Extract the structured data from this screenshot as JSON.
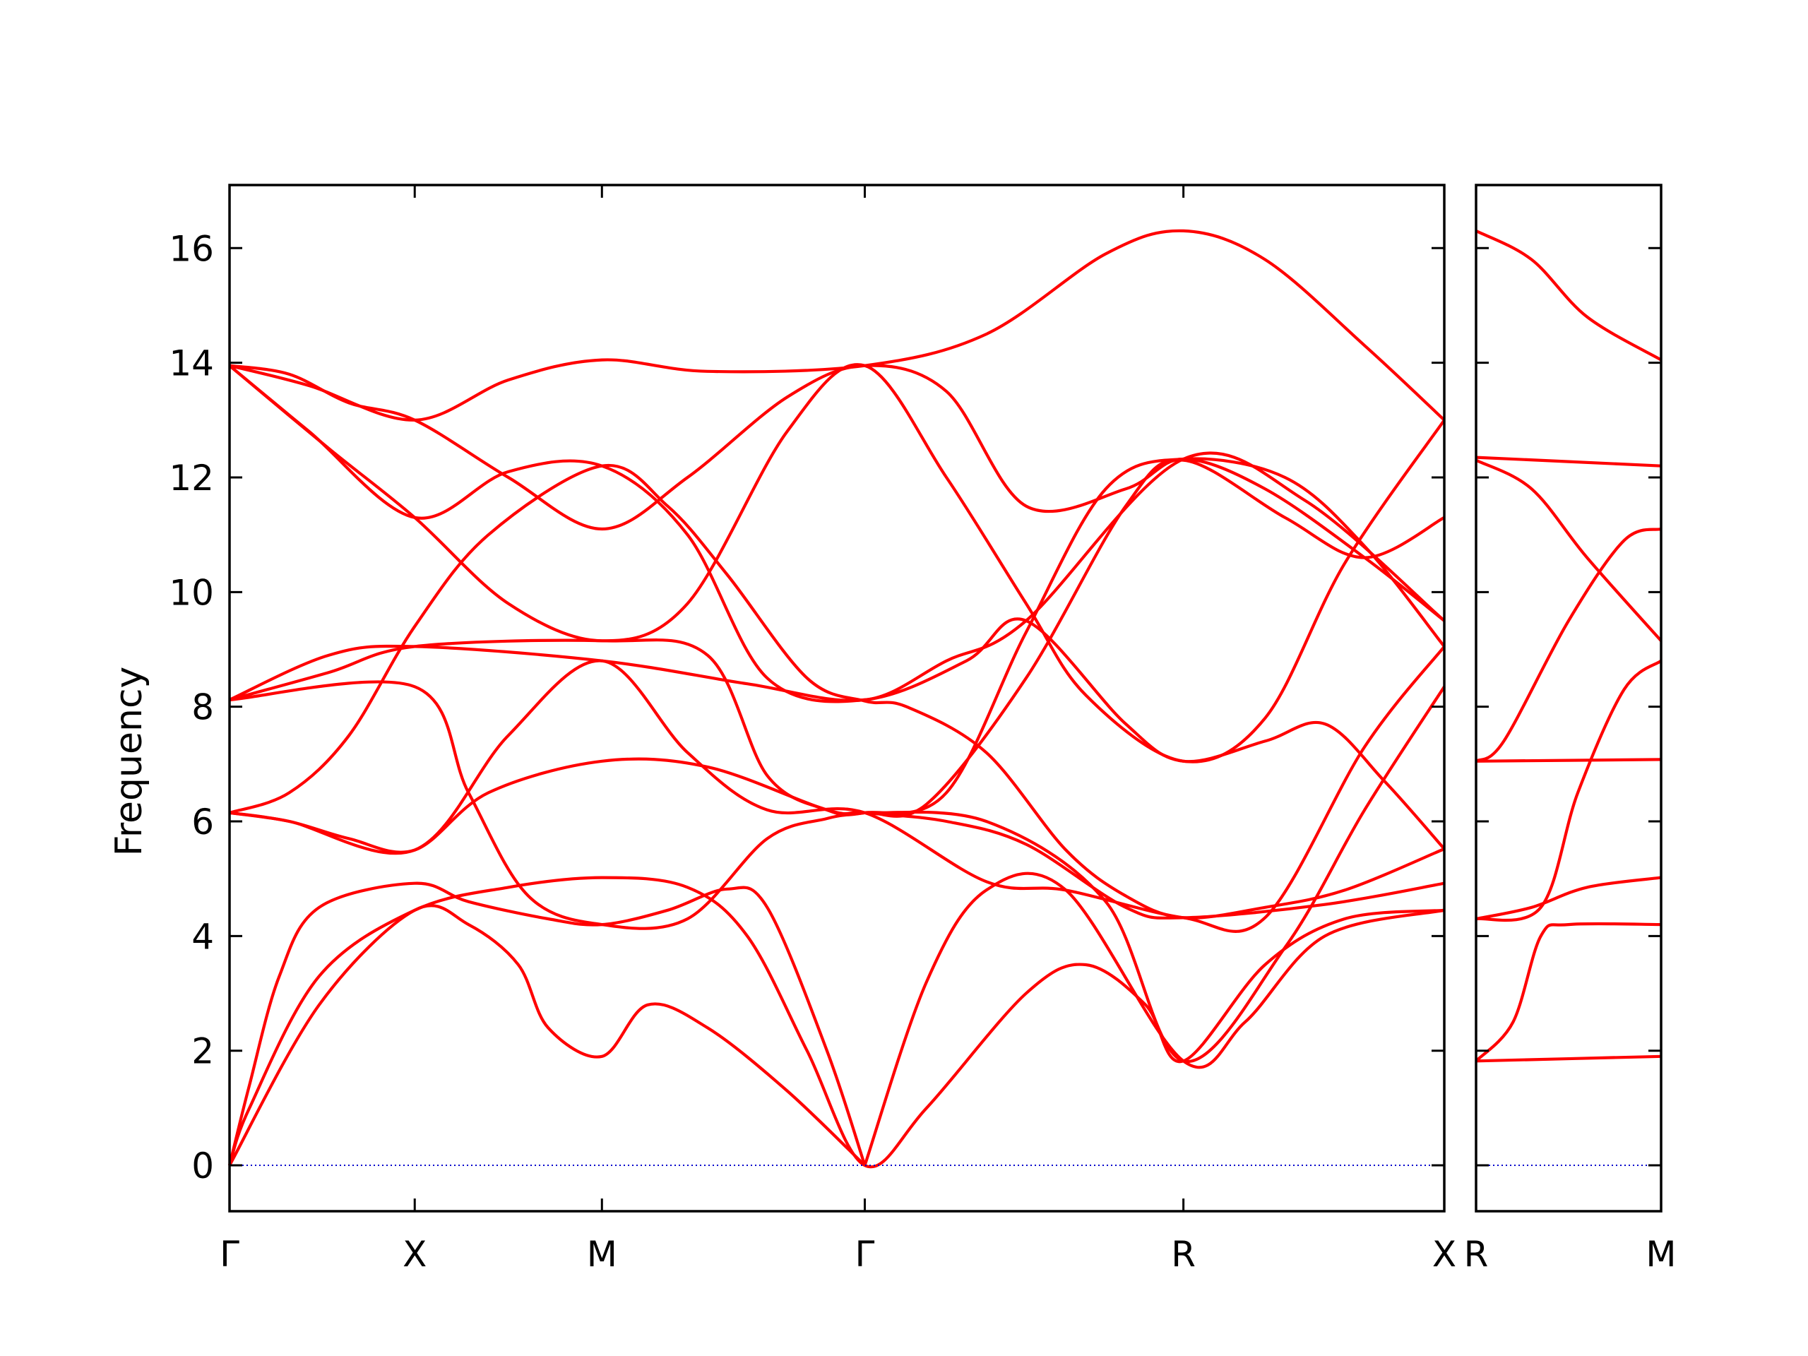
{
  "chart_data": {
    "type": "line",
    "title": "",
    "ylabel": "Frequency",
    "ylim": [
      -0.8,
      17.1
    ],
    "yticks": [
      0,
      2,
      4,
      6,
      8,
      10,
      12,
      14,
      16
    ],
    "grid": false,
    "legend": "none",
    "colors": {
      "bands": "#ff0000",
      "zero_line": "#0000cc",
      "axes": "#000000"
    },
    "panels": [
      {
        "id": "main",
        "xlim": [
          0,
          6.1
        ],
        "ticks": [
          {
            "label": "Γ",
            "x": 0
          },
          {
            "label": "X",
            "x": 0.93
          },
          {
            "label": "M",
            "x": 1.87
          },
          {
            "label": "Γ",
            "x": 3.19
          },
          {
            "label": "R",
            "x": 4.79
          },
          {
            "label": "X",
            "x": 6.1
          }
        ],
        "bands": [
          [
            [
              0,
              0
            ],
            [
              0.1,
              1.4
            ],
            [
              0.25,
              3.3
            ],
            [
              0.45,
              4.5
            ],
            [
              0.93,
              4.92
            ],
            [
              1.2,
              4.6
            ],
            [
              1.6,
              4.3
            ],
            [
              1.87,
              4.2
            ],
            [
              2.2,
              4.45
            ],
            [
              2.5,
              4.82
            ],
            [
              2.7,
              4.5
            ],
            [
              3.0,
              2.0
            ],
            [
              3.19,
              0
            ]
          ],
          [
            [
              0,
              0
            ],
            [
              0.45,
              2.8
            ],
            [
              0.93,
              4.45
            ],
            [
              1.2,
              4.2
            ],
            [
              1.45,
              3.5
            ],
            [
              1.6,
              2.4
            ],
            [
              1.87,
              1.9
            ],
            [
              2.1,
              2.8
            ],
            [
              2.4,
              2.4
            ],
            [
              2.8,
              1.3
            ],
            [
              3.19,
              0
            ]
          ],
          [
            [
              0,
              6.15
            ],
            [
              0.3,
              6.0
            ],
            [
              0.6,
              5.7
            ],
            [
              0.93,
              5.5
            ],
            [
              1.3,
              6.5
            ],
            [
              1.87,
              7.05
            ],
            [
              2.4,
              6.95
            ],
            [
              3.0,
              6.2
            ],
            [
              3.19,
              6.15
            ],
            [
              3.6,
              6.0
            ],
            [
              4.0,
              5.6
            ],
            [
              4.5,
              4.5
            ],
            [
              4.79,
              4.32
            ],
            [
              5.5,
              4.55
            ],
            [
              6.1,
              4.92
            ]
          ],
          [
            [
              0,
              6.15
            ],
            [
              0.3,
              6.5
            ],
            [
              0.6,
              7.5
            ],
            [
              0.93,
              9.4
            ],
            [
              1.3,
              11.0
            ],
            [
              1.87,
              12.2
            ],
            [
              2.2,
              11.5
            ],
            [
              2.5,
              10.3
            ],
            [
              2.9,
              8.5
            ],
            [
              3.19,
              8.1
            ],
            [
              3.4,
              8.0
            ],
            [
              3.8,
              7.2
            ],
            [
              4.2,
              5.5
            ],
            [
              4.5,
              4.7
            ],
            [
              4.79,
              4.32
            ],
            [
              5.2,
              4.5
            ],
            [
              5.6,
              4.8
            ],
            [
              6.1,
              5.52
            ]
          ],
          [
            [
              0,
              8.12
            ],
            [
              0.93,
              8.35
            ],
            [
              1.2,
              6.5
            ],
            [
              1.5,
              4.7
            ],
            [
              1.87,
              4.2
            ],
            [
              2.3,
              4.3
            ],
            [
              2.7,
              5.7
            ],
            [
              3.0,
              6.05
            ],
            [
              3.19,
              6.15
            ],
            [
              3.5,
              6.3
            ],
            [
              4.0,
              8.5
            ],
            [
              4.5,
              11.5
            ],
            [
              4.79,
              12.3
            ],
            [
              5.3,
              11.3
            ],
            [
              5.7,
              10.6
            ],
            [
              6.1,
              11.3
            ]
          ],
          [
            [
              0,
              8.12
            ],
            [
              0.5,
              8.9
            ],
            [
              0.93,
              9.05
            ],
            [
              1.87,
              8.8
            ],
            [
              2.6,
              8.4
            ],
            [
              3.19,
              8.12
            ],
            [
              3.7,
              8.8
            ],
            [
              4.0,
              9.5
            ],
            [
              4.5,
              7.7
            ],
            [
              4.79,
              7.05
            ],
            [
              5.2,
              7.4
            ],
            [
              5.5,
              7.7
            ],
            [
              5.8,
              6.7
            ],
            [
              6.1,
              5.52
            ]
          ],
          [
            [
              0,
              13.95
            ],
            [
              0.3,
              13.8
            ],
            [
              0.6,
              13.3
            ],
            [
              0.93,
              13.0
            ],
            [
              1.4,
              12.0
            ],
            [
              1.87,
              11.1
            ],
            [
              2.3,
              12.0
            ],
            [
              2.8,
              13.4
            ],
            [
              3.19,
              13.95
            ],
            [
              3.6,
              13.5
            ],
            [
              4.0,
              11.5
            ],
            [
              4.5,
              11.8
            ],
            [
              4.79,
              12.32
            ],
            [
              5.2,
              11.8
            ],
            [
              5.7,
              10.6
            ],
            [
              6.1,
              9.5
            ]
          ],
          [
            [
              0,
              13.95
            ],
            [
              0.4,
              13.6
            ],
            [
              0.93,
              13.0
            ],
            [
              1.4,
              13.7
            ],
            [
              1.87,
              14.05
            ],
            [
              2.4,
              13.85
            ],
            [
              3.19,
              13.95
            ],
            [
              3.8,
              14.5
            ],
            [
              4.4,
              15.9
            ],
            [
              4.79,
              16.3
            ],
            [
              5.2,
              15.8
            ],
            [
              5.7,
              14.3
            ],
            [
              6.1,
              13.0
            ]
          ],
          [
            [
              0,
              8.12
            ],
            [
              0.5,
              8.6
            ],
            [
              0.93,
              9.05
            ],
            [
              1.87,
              9.15
            ],
            [
              2.4,
              8.9
            ],
            [
              2.7,
              6.8
            ],
            [
              3.0,
              6.2
            ],
            [
              3.19,
              6.15
            ],
            [
              3.6,
              6.5
            ],
            [
              4.0,
              9.3
            ],
            [
              4.4,
              11.8
            ],
            [
              4.79,
              12.32
            ],
            [
              5.3,
              12.0
            ],
            [
              5.7,
              10.8
            ],
            [
              6.1,
              9.05
            ]
          ],
          [
            [
              0,
              6.15
            ],
            [
              0.3,
              6.0
            ],
            [
              0.93,
              5.5
            ],
            [
              1.4,
              7.5
            ],
            [
              1.87,
              8.8
            ],
            [
              2.3,
              7.2
            ],
            [
              2.7,
              6.2
            ],
            [
              3.19,
              6.15
            ],
            [
              3.8,
              4.95
            ],
            [
              4.2,
              4.8
            ],
            [
              4.79,
              4.32
            ],
            [
              5.2,
              4.32
            ],
            [
              5.7,
              7.3
            ],
            [
              6.1,
              9.05
            ]
          ],
          [
            [
              0,
              13.95
            ],
            [
              0.5,
              12.5
            ],
            [
              0.93,
              11.3
            ],
            [
              1.4,
              9.8
            ],
            [
              1.87,
              9.15
            ],
            [
              2.3,
              9.8
            ],
            [
              2.8,
              12.8
            ],
            [
              3.19,
              13.95
            ],
            [
              3.6,
              12.0
            ],
            [
              4.0,
              9.8
            ],
            [
              4.3,
              8.2
            ],
            [
              4.79,
              7.05
            ],
            [
              5.2,
              7.8
            ],
            [
              5.6,
              10.5
            ],
            [
              6.1,
              13.0
            ]
          ],
          [
            [
              0,
              0
            ],
            [
              0.1,
              1.0
            ],
            [
              0.45,
              3.3
            ],
            [
              0.93,
              4.45
            ],
            [
              1.4,
              4.85
            ],
            [
              1.87,
              5.02
            ],
            [
              2.3,
              4.85
            ],
            [
              2.6,
              4.0
            ],
            [
              2.9,
              2.0
            ],
            [
              3.19,
              0
            ],
            [
              3.5,
              1.0
            ],
            [
              4.0,
              3.0
            ],
            [
              4.3,
              3.5
            ],
            [
              4.6,
              2.8
            ],
            [
              4.79,
              1.82
            ],
            [
              5.2,
              3.5
            ],
            [
              5.6,
              4.3
            ],
            [
              6.1,
              4.45
            ]
          ],
          [
            [
              0,
              13.95
            ],
            [
              0.4,
              12.8
            ],
            [
              0.93,
              11.3
            ],
            [
              1.4,
              12.1
            ],
            [
              1.87,
              12.2
            ],
            [
              2.3,
              11.0
            ],
            [
              2.7,
              8.5
            ],
            [
              3.19,
              8.12
            ],
            [
              3.6,
              8.8
            ],
            [
              4.0,
              9.5
            ],
            [
              4.79,
              12.32
            ],
            [
              5.4,
              11.6
            ],
            [
              6.1,
              9.5
            ]
          ],
          [
            [
              3.19,
              0
            ],
            [
              3.5,
              3.2
            ],
            [
              3.8,
              4.8
            ],
            [
              4.2,
              4.8
            ],
            [
              4.79,
              1.82
            ],
            [
              5.1,
              2.5
            ],
            [
              5.5,
              4.0
            ],
            [
              6.1,
              4.45
            ]
          ],
          [
            [
              3.19,
              6.15
            ],
            [
              3.8,
              6.0
            ],
            [
              4.4,
              4.6
            ],
            [
              4.79,
              1.82
            ],
            [
              5.3,
              3.8
            ],
            [
              5.7,
              6.2
            ],
            [
              6.1,
              8.35
            ]
          ]
        ]
      },
      {
        "id": "side",
        "xlim": [
          0,
          1
        ],
        "ticks": [
          {
            "label": "R",
            "x": 0
          },
          {
            "label": "M",
            "x": 1
          }
        ],
        "bands": [
          [
            [
              0,
              16.3
            ],
            [
              0.3,
              15.8
            ],
            [
              0.6,
              14.8
            ],
            [
              1,
              14.05
            ]
          ],
          [
            [
              0,
              12.35
            ],
            [
              1,
              12.2
            ]
          ],
          [
            [
              0,
              12.3
            ],
            [
              0.3,
              11.8
            ],
            [
              0.6,
              10.6
            ],
            [
              1,
              9.15
            ]
          ],
          [
            [
              0,
              7.05
            ],
            [
              0.15,
              7.4
            ],
            [
              0.5,
              9.5
            ],
            [
              0.8,
              10.9
            ],
            [
              1,
              11.1
            ]
          ],
          [
            [
              0,
              7.05
            ],
            [
              1,
              7.08
            ]
          ],
          [
            [
              0,
              4.3
            ],
            [
              0.35,
              4.5
            ],
            [
              0.55,
              6.5
            ],
            [
              0.8,
              8.3
            ],
            [
              1,
              8.8
            ]
          ],
          [
            [
              0,
              4.3
            ],
            [
              0.3,
              4.5
            ],
            [
              0.6,
              4.85
            ],
            [
              1,
              5.02
            ]
          ],
          [
            [
              0,
              1.82
            ],
            [
              0.2,
              2.5
            ],
            [
              0.35,
              4.0
            ],
            [
              0.5,
              4.2
            ],
            [
              1,
              4.2
            ]
          ],
          [
            [
              0,
              1.82
            ],
            [
              1,
              1.9
            ]
          ]
        ]
      }
    ]
  }
}
